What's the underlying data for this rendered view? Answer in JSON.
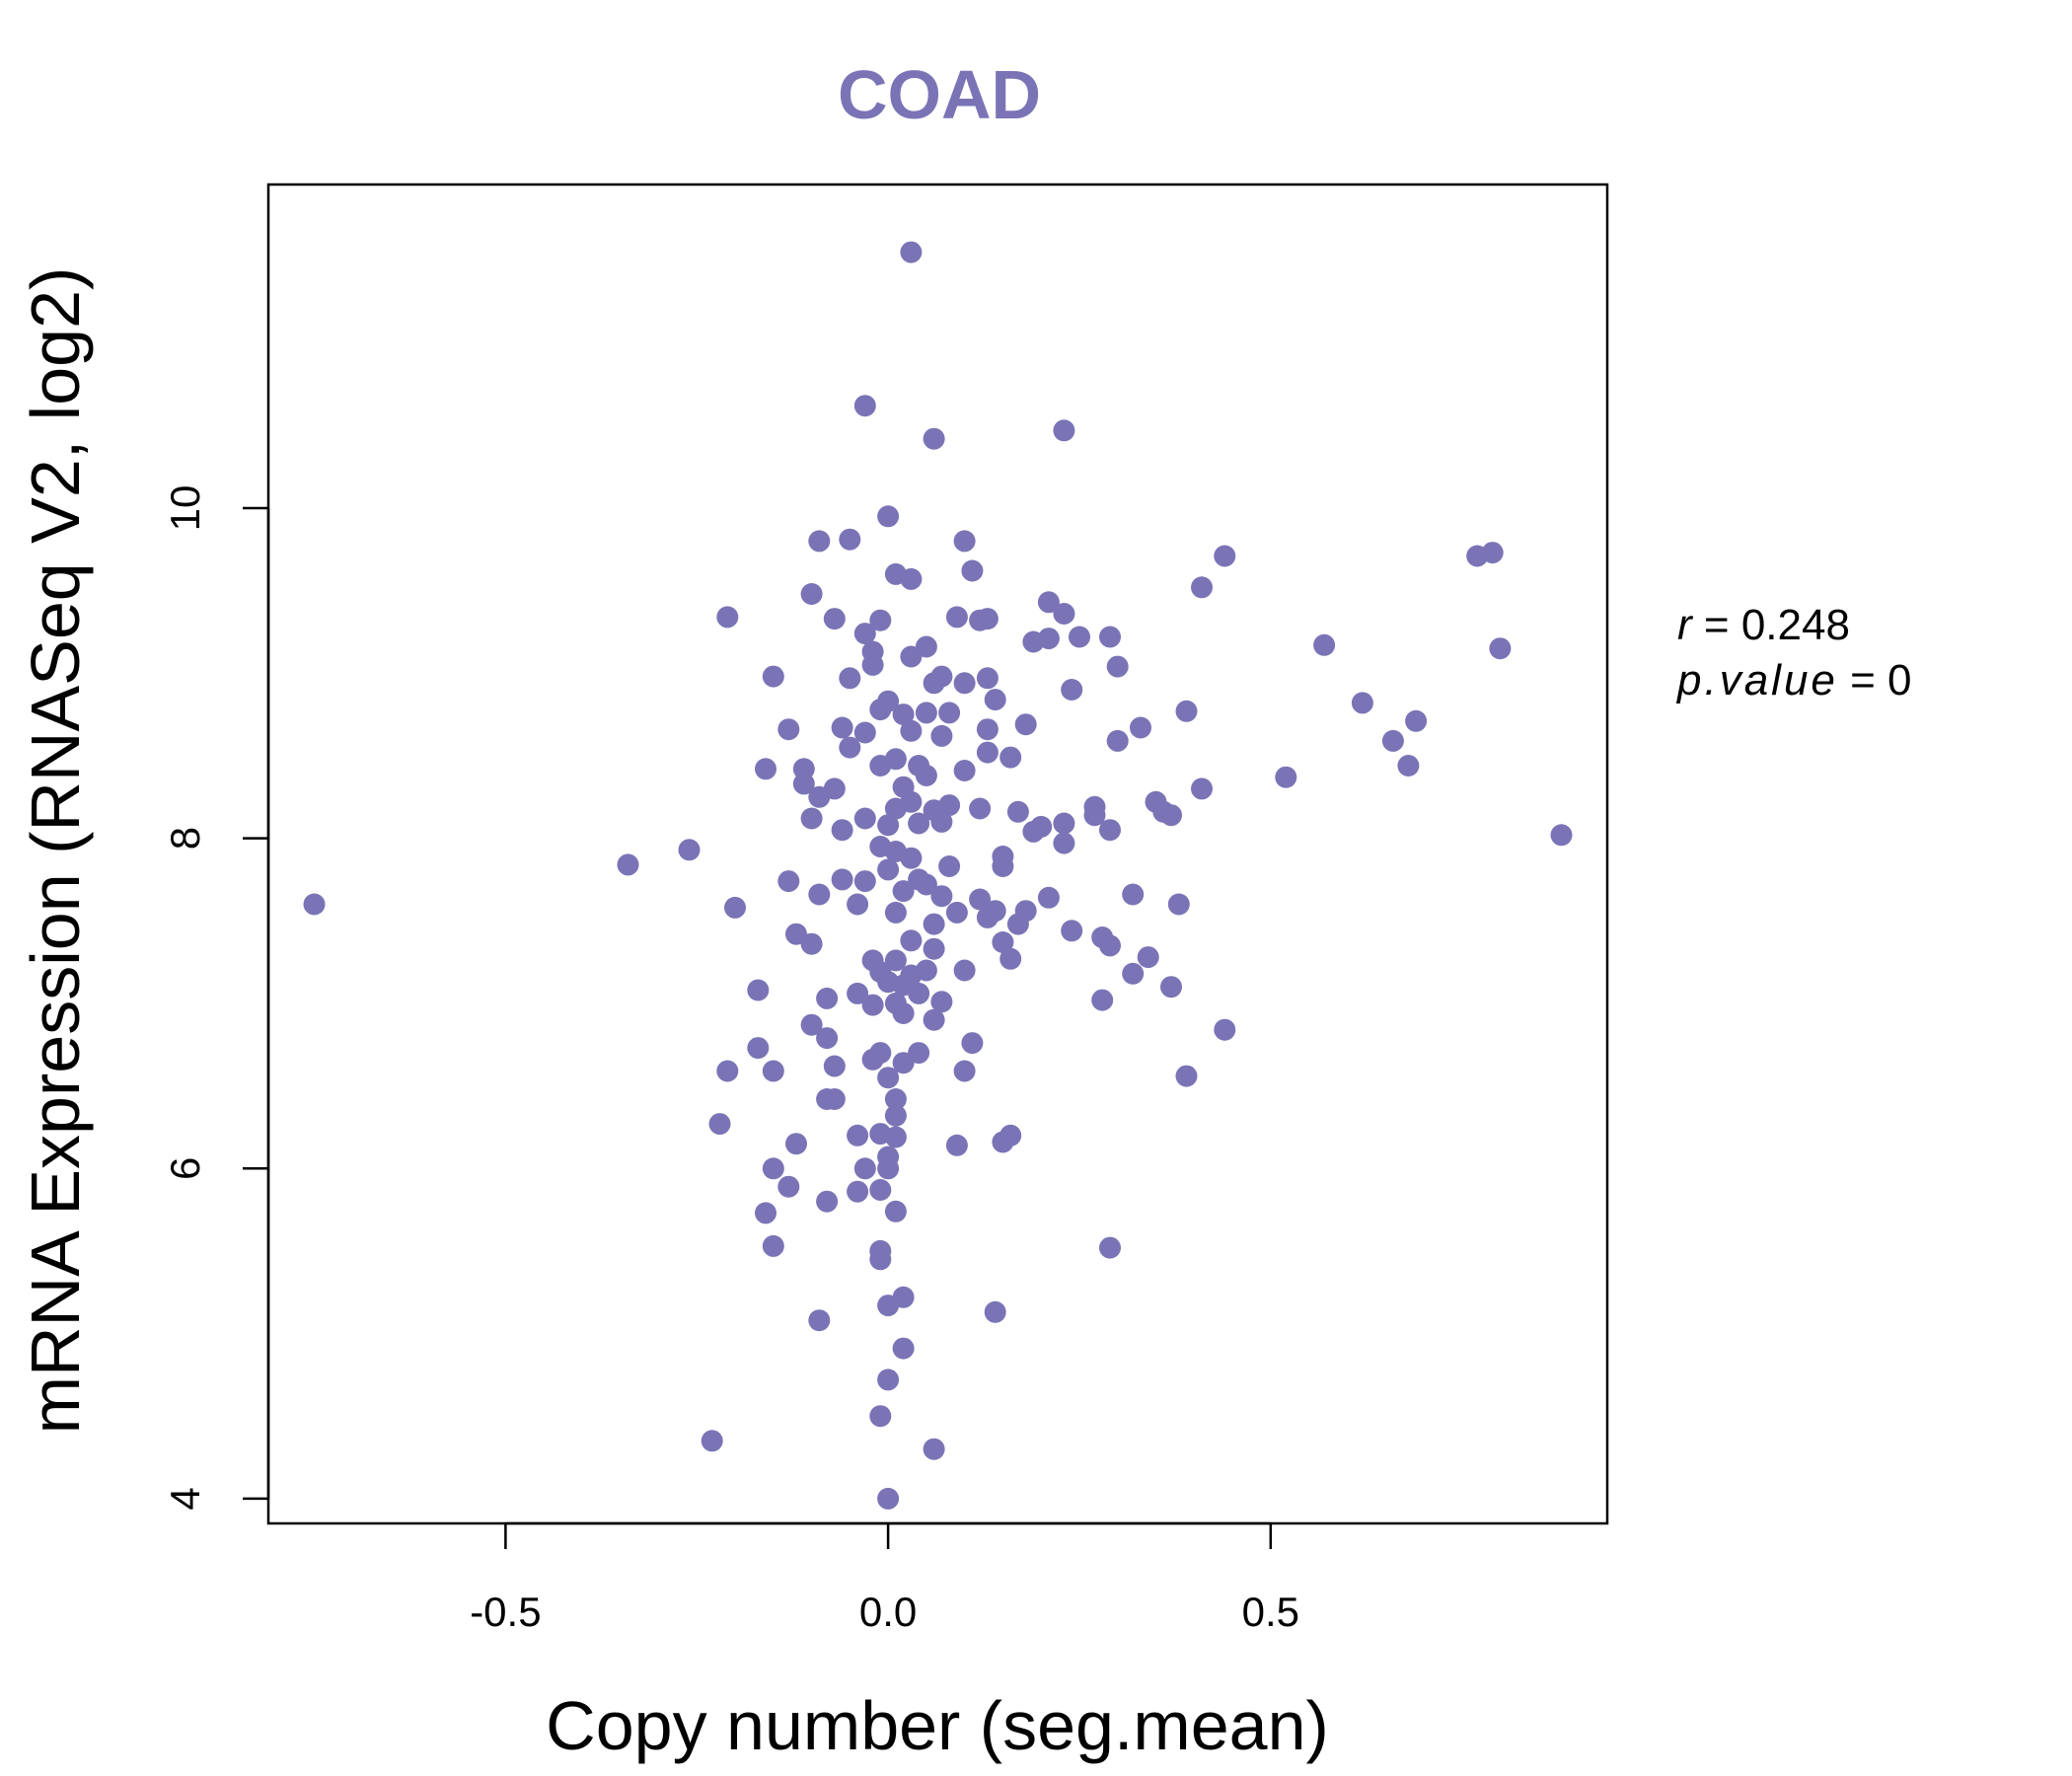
{
  "chart_data": {
    "type": "scatter",
    "title": "COAD",
    "xlabel": "Copy number (seg.mean)",
    "ylabel": "mRNA Expression (RNASeq V2, log2)",
    "xlim": [
      -0.81,
      0.94
    ],
    "ylim": [
      3.85,
      11.96
    ],
    "x_ticks": [
      -0.5,
      0.0,
      0.5
    ],
    "x_tick_labels": [
      "-0.5",
      "0.0",
      "0.5"
    ],
    "y_ticks": [
      4,
      6,
      8,
      10
    ],
    "y_tick_labels": [
      "4",
      "6",
      "8",
      "10"
    ],
    "grid": false,
    "legend": "none",
    "stats": {
      "r_label": "r",
      "r_value": "0.248",
      "p_label": "p.value",
      "p_value": "0"
    },
    "colors": {
      "points": "#7a74b6",
      "title": "#7a74b6",
      "axis": "#000000"
    },
    "points": [
      [
        0.03,
        11.55
      ],
      [
        -0.03,
        10.62
      ],
      [
        0.06,
        10.42
      ],
      [
        0.23,
        10.47
      ],
      [
        -0.75,
        7.6
      ],
      [
        -0.34,
        7.84
      ],
      [
        -0.26,
        7.93
      ],
      [
        -0.23,
        4.35
      ],
      [
        -0.21,
        9.34
      ],
      [
        -0.2,
        7.58
      ],
      [
        -0.21,
        6.59
      ],
      [
        -0.22,
        6.27
      ],
      [
        -0.17,
        7.08
      ],
      [
        -0.17,
        6.73
      ],
      [
        -0.16,
        8.42
      ],
      [
        -0.15,
        8.98
      ],
      [
        -0.15,
        6.59
      ],
      [
        -0.15,
        6.0
      ],
      [
        -0.16,
        5.73
      ],
      [
        -0.15,
        5.53
      ],
      [
        -0.13,
        8.66
      ],
      [
        -0.13,
        7.74
      ],
      [
        -0.12,
        7.42
      ],
      [
        -0.12,
        6.15
      ],
      [
        -0.13,
        5.89
      ],
      [
        -0.11,
        8.42
      ],
      [
        -0.11,
        8.33
      ],
      [
        -0.1,
        8.12
      ],
      [
        -0.1,
        9.48
      ],
      [
        -0.09,
        9.8
      ],
      [
        -0.09,
        8.25
      ],
      [
        -0.09,
        7.66
      ],
      [
        -0.1,
        7.36
      ],
      [
        -0.1,
        6.87
      ],
      [
        -0.08,
        7.03
      ],
      [
        -0.08,
        6.79
      ],
      [
        -0.08,
        6.42
      ],
      [
        -0.08,
        5.8
      ],
      [
        -0.09,
        5.08
      ],
      [
        -0.07,
        9.33
      ],
      [
        -0.07,
        8.3
      ],
      [
        -0.06,
        8.05
      ],
      [
        -0.06,
        7.75
      ],
      [
        -0.07,
        6.62
      ],
      [
        -0.07,
        6.42
      ],
      [
        -0.06,
        8.67
      ],
      [
        -0.05,
        9.81
      ],
      [
        -0.05,
        8.97
      ],
      [
        -0.05,
        8.55
      ],
      [
        -0.04,
        7.6
      ],
      [
        -0.04,
        7.06
      ],
      [
        -0.04,
        6.2
      ],
      [
        -0.04,
        5.86
      ],
      [
        -0.03,
        9.24
      ],
      [
        -0.03,
        8.64
      ],
      [
        -0.03,
        8.12
      ],
      [
        -0.03,
        7.74
      ],
      [
        -0.02,
        7.26
      ],
      [
        -0.02,
        6.99
      ],
      [
        -0.02,
        6.66
      ],
      [
        -0.03,
        6.0
      ],
      [
        -0.02,
        9.13
      ],
      [
        -0.02,
        9.05
      ],
      [
        -0.01,
        9.32
      ],
      [
        -0.01,
        8.78
      ],
      [
        -0.01,
        8.44
      ],
      [
        -0.01,
        7.95
      ],
      [
        -0.01,
        7.19
      ],
      [
        -0.01,
        6.7
      ],
      [
        -0.01,
        6.21
      ],
      [
        -0.01,
        5.87
      ],
      [
        -0.01,
        5.5
      ],
      [
        -0.01,
        5.45
      ],
      [
        0.0,
        5.17
      ],
      [
        -0.01,
        4.5
      ],
      [
        0.0,
        4.72
      ],
      [
        0.0,
        4.0
      ],
      [
        0.0,
        9.95
      ],
      [
        0.0,
        8.83
      ],
      [
        0.0,
        8.08
      ],
      [
        0.0,
        7.81
      ],
      [
        0.0,
        7.13
      ],
      [
        0.0,
        6.55
      ],
      [
        0.0,
        6.0
      ],
      [
        0.0,
        6.07
      ],
      [
        0.01,
        9.6
      ],
      [
        0.01,
        8.48
      ],
      [
        0.01,
        8.18
      ],
      [
        0.01,
        7.92
      ],
      [
        0.01,
        7.55
      ],
      [
        0.01,
        7.26
      ],
      [
        0.01,
        7.0
      ],
      [
        0.01,
        6.42
      ],
      [
        0.01,
        6.32
      ],
      [
        0.01,
        6.19
      ],
      [
        0.01,
        5.74
      ],
      [
        0.02,
        5.22
      ],
      [
        0.02,
        4.91
      ],
      [
        0.02,
        8.75
      ],
      [
        0.02,
        8.31
      ],
      [
        0.02,
        7.68
      ],
      [
        0.02,
        7.11
      ],
      [
        0.02,
        6.94
      ],
      [
        0.02,
        6.64
      ],
      [
        0.03,
        9.57
      ],
      [
        0.03,
        9.1
      ],
      [
        0.03,
        8.65
      ],
      [
        0.03,
        8.22
      ],
      [
        0.03,
        7.88
      ],
      [
        0.03,
        7.38
      ],
      [
        0.03,
        7.17
      ],
      [
        0.04,
        6.7
      ],
      [
        0.04,
        8.44
      ],
      [
        0.04,
        8.09
      ],
      [
        0.04,
        7.75
      ],
      [
        0.04,
        7.06
      ],
      [
        0.05,
        9.16
      ],
      [
        0.05,
        8.76
      ],
      [
        0.05,
        8.38
      ],
      [
        0.05,
        7.72
      ],
      [
        0.05,
        7.2
      ],
      [
        0.06,
        8.94
      ],
      [
        0.06,
        8.17
      ],
      [
        0.06,
        7.48
      ],
      [
        0.06,
        7.33
      ],
      [
        0.06,
        6.9
      ],
      [
        0.06,
        4.3
      ],
      [
        0.07,
        8.98
      ],
      [
        0.07,
        8.62
      ],
      [
        0.07,
        8.1
      ],
      [
        0.07,
        7.65
      ],
      [
        0.07,
        7.01
      ],
      [
        0.08,
        8.76
      ],
      [
        0.08,
        8.2
      ],
      [
        0.08,
        7.83
      ],
      [
        0.09,
        9.34
      ],
      [
        0.09,
        7.55
      ],
      [
        0.09,
        6.14
      ],
      [
        0.1,
        9.8
      ],
      [
        0.1,
        8.94
      ],
      [
        0.1,
        8.41
      ],
      [
        0.1,
        7.2
      ],
      [
        0.1,
        6.59
      ],
      [
        0.11,
        9.62
      ],
      [
        0.11,
        6.76
      ],
      [
        0.12,
        9.32
      ],
      [
        0.12,
        8.18
      ],
      [
        0.12,
        7.63
      ],
      [
        0.13,
        9.33
      ],
      [
        0.13,
        8.97
      ],
      [
        0.13,
        8.66
      ],
      [
        0.13,
        8.52
      ],
      [
        0.13,
        7.52
      ],
      [
        0.14,
        8.84
      ],
      [
        0.14,
        7.56
      ],
      [
        0.14,
        5.13
      ],
      [
        0.15,
        7.89
      ],
      [
        0.15,
        7.37
      ],
      [
        0.15,
        6.16
      ],
      [
        0.15,
        7.83
      ],
      [
        0.16,
        8.49
      ],
      [
        0.16,
        7.27
      ],
      [
        0.16,
        6.2
      ],
      [
        0.17,
        8.16
      ],
      [
        0.17,
        7.48
      ],
      [
        0.18,
        7.56
      ],
      [
        0.18,
        8.69
      ],
      [
        0.19,
        9.19
      ],
      [
        0.19,
        8.04
      ],
      [
        0.2,
        8.07
      ],
      [
        0.21,
        9.43
      ],
      [
        0.21,
        9.21
      ],
      [
        0.21,
        7.64
      ],
      [
        0.23,
        9.36
      ],
      [
        0.23,
        8.09
      ],
      [
        0.23,
        7.97
      ],
      [
        0.24,
        8.9
      ],
      [
        0.24,
        7.44
      ],
      [
        0.25,
        9.22
      ],
      [
        0.27,
        8.19
      ],
      [
        0.27,
        8.14
      ],
      [
        0.28,
        7.4
      ],
      [
        0.28,
        7.02
      ],
      [
        0.29,
        9.22
      ],
      [
        0.29,
        8.05
      ],
      [
        0.29,
        7.35
      ],
      [
        0.29,
        5.52
      ],
      [
        0.3,
        9.04
      ],
      [
        0.3,
        8.59
      ],
      [
        0.32,
        7.18
      ],
      [
        0.32,
        7.66
      ],
      [
        0.33,
        8.67
      ],
      [
        0.34,
        7.28
      ],
      [
        0.35,
        8.22
      ],
      [
        0.36,
        8.16
      ],
      [
        0.37,
        8.14
      ],
      [
        0.37,
        7.1
      ],
      [
        0.38,
        7.6
      ],
      [
        0.39,
        8.77
      ],
      [
        0.39,
        6.56
      ],
      [
        0.41,
        8.3
      ],
      [
        0.41,
        9.52
      ],
      [
        0.44,
        9.71
      ],
      [
        0.44,
        6.84
      ],
      [
        0.52,
        8.37
      ],
      [
        0.57,
        9.17
      ],
      [
        0.62,
        8.82
      ],
      [
        0.66,
        8.59
      ],
      [
        0.68,
        8.44
      ],
      [
        0.69,
        8.71
      ],
      [
        0.77,
        9.71
      ],
      [
        0.79,
        9.73
      ],
      [
        0.8,
        9.15
      ],
      [
        0.88,
        8.02
      ]
    ]
  }
}
